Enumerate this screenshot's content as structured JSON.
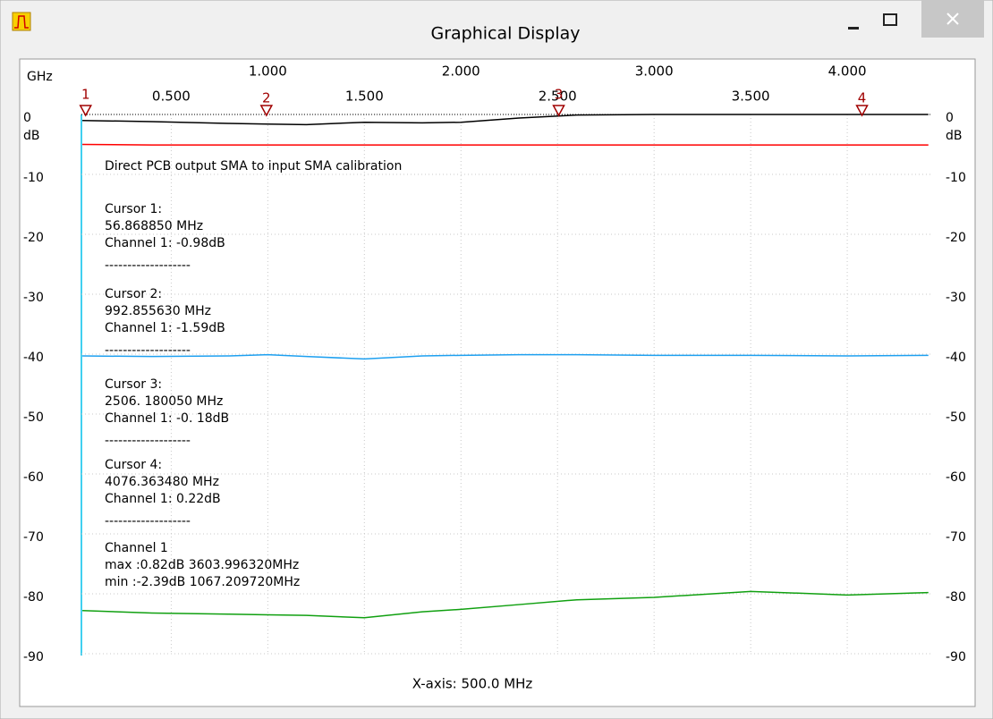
{
  "window": {
    "title": "Graphical Display"
  },
  "chart_data": {
    "type": "line",
    "x_unit": "GHz",
    "y_unit": "dB",
    "xlabel": "X-axis: 500.0 MHz",
    "xlim": [
      0.035,
      4.435
    ],
    "ylim": [
      -90,
      0
    ],
    "xticks": [
      {
        "value": 0.5,
        "label": "0.500"
      },
      {
        "value": 1.0,
        "label": "1.000"
      },
      {
        "value": 1.5,
        "label": "1.500"
      },
      {
        "value": 2.0,
        "label": "2.000"
      },
      {
        "value": 2.5,
        "label": "2.500"
      },
      {
        "value": 3.0,
        "label": "3.000"
      },
      {
        "value": 3.5,
        "label": "3.500"
      },
      {
        "value": 4.0,
        "label": "4.000"
      }
    ],
    "yticks": [
      0,
      -10,
      -20,
      -30,
      -40,
      -50,
      -60,
      -70,
      -80,
      -90
    ],
    "grid": true,
    "x": [
      0.04,
      0.4,
      0.8,
      1.0,
      1.2,
      1.5,
      1.8,
      2.0,
      2.3,
      2.6,
      3.0,
      3.5,
      4.0,
      4.42
    ],
    "series": [
      {
        "color": "#000000",
        "values": [
          -1.0,
          -1.2,
          -1.5,
          -1.6,
          -1.7,
          -1.3,
          -1.4,
          -1.3,
          -0.6,
          -0.1,
          0,
          0,
          0,
          0
        ]
      },
      {
        "color": "#ff0000",
        "values": [
          -5.0,
          -5.1,
          -5.1,
          -5.1,
          -5.1,
          -5.1,
          -5.1,
          -5.1,
          -5.1,
          -5.1,
          -5.1,
          -5.1,
          -5.1,
          -5.1
        ]
      },
      {
        "color": "#1ea0f0",
        "values": [
          -40.3,
          -40.4,
          -40.3,
          -40.1,
          -40.4,
          -40.8,
          -40.3,
          -40.2,
          -40.1,
          -40.1,
          -40.2,
          -40.2,
          -40.3,
          -40.2
        ]
      },
      {
        "color": "#10a010",
        "values": [
          -82.8,
          -83.2,
          -83.4,
          -83.5,
          -83.6,
          -84.0,
          -83.0,
          -82.6,
          -81.8,
          -81.0,
          -80.6,
          -79.6,
          -80.2,
          -79.8
        ]
      }
    ],
    "cursors": [
      {
        "label": "1",
        "x": 0.05686885
      },
      {
        "label": "2",
        "x": 0.99285563
      },
      {
        "label": "3",
        "x": 2.50618005
      },
      {
        "label": "4",
        "x": 4.07636348
      }
    ],
    "caption": "Direct PCB output SMA to input SMA calibration",
    "readout": [
      [
        "Cursor 1:",
        "56.868850 MHz",
        "Channel 1: -0.98dB",
        "-------------------"
      ],
      [
        "Cursor 2:",
        "992.855630 MHz",
        "Channel 1: -1.59dB",
        "-------------------"
      ],
      [
        "Cursor 3:",
        "2506. 180050 MHz",
        "Channel 1: -0. 18dB",
        "-------------------"
      ],
      [
        "Cursor 4:",
        "4076.363480 MHz",
        "Channel 1: 0.22dB",
        "-------------------"
      ],
      [
        "Channel 1",
        "max :0.82dB 3603.996320MHz",
        "min :-2.39dB 1067.209720MHz"
      ]
    ]
  }
}
